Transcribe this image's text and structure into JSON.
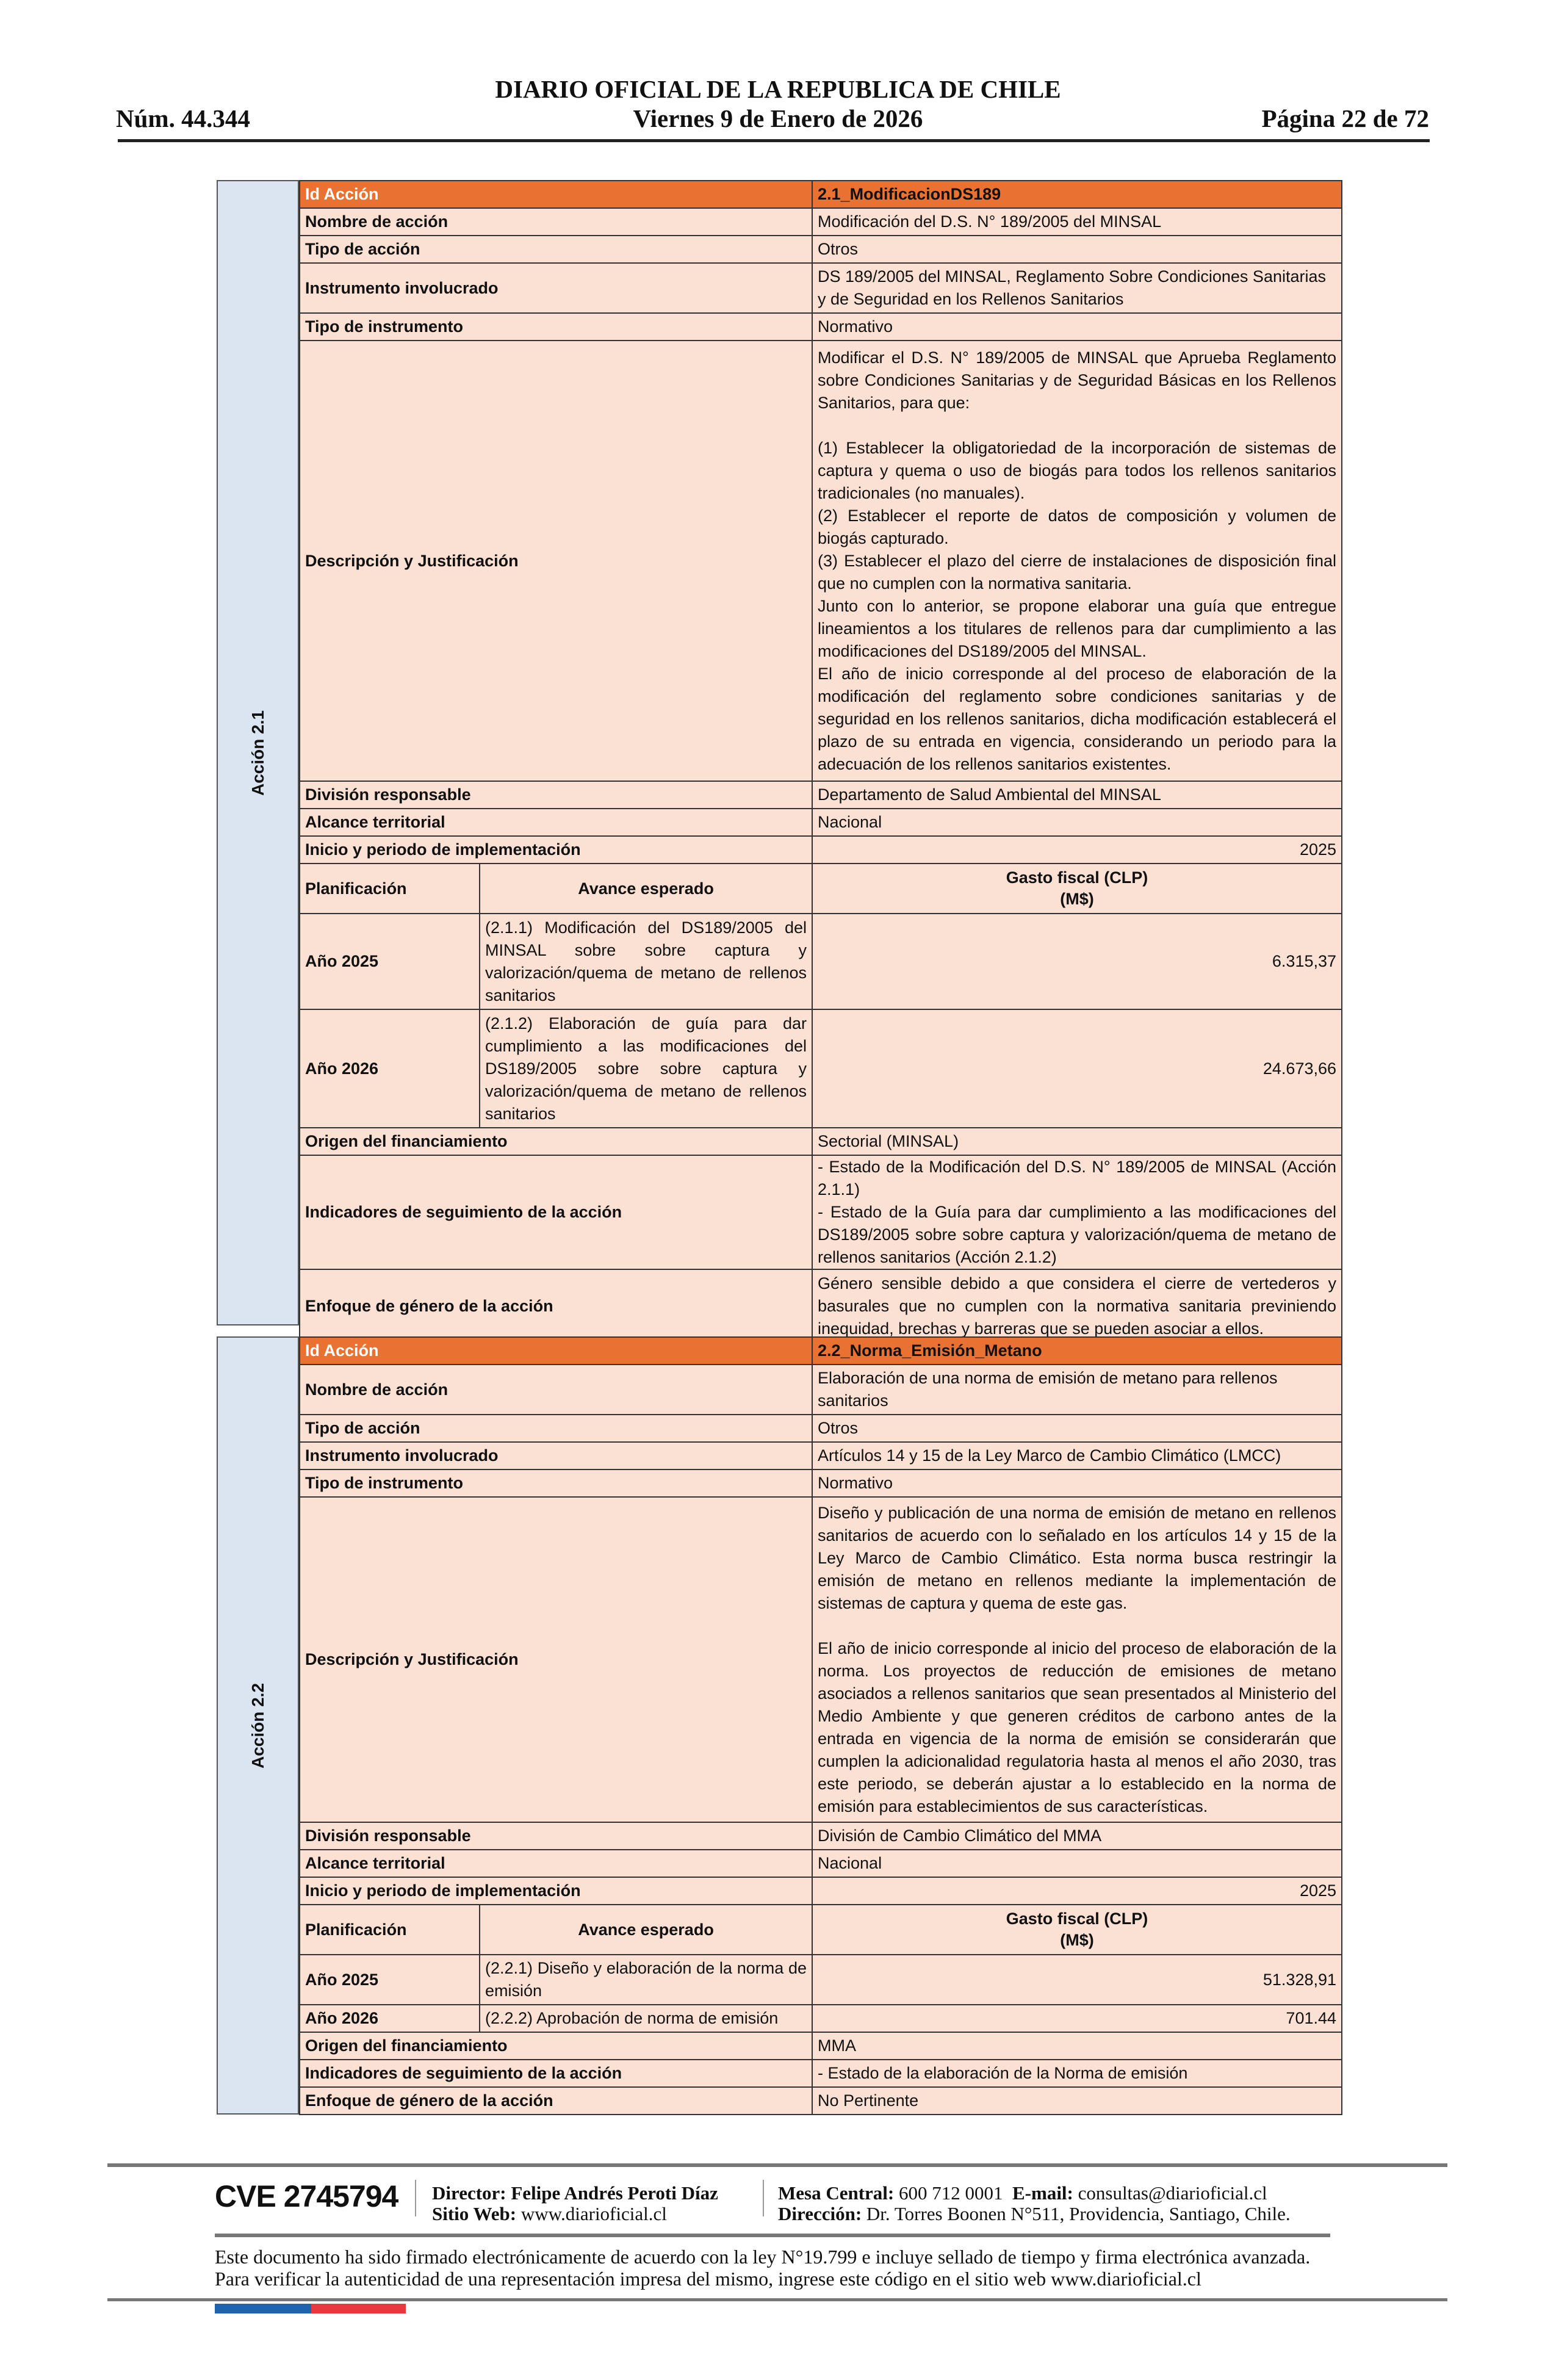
{
  "header": {
    "title": "DIARIO OFICIAL DE LA REPUBLICA DE CHILE",
    "number": "Núm. 44.344",
    "date": "Viernes 9 de Enero de 2026",
    "page": "Página 22 de 72"
  },
  "actions": [
    {
      "side_label": "Acción 2.1",
      "rows": [
        {
          "type": "id",
          "label": "Id Acción",
          "value": "2.1_ModificacionDS189"
        },
        {
          "label": "Nombre de acción",
          "value": "Modificación del D.S. N° 189/2005 del MINSAL"
        },
        {
          "label": "Tipo de acción",
          "value": "Otros"
        },
        {
          "label": "Instrumento involucrado",
          "value": "DS 189/2005 del MINSAL, Reglamento Sobre Condiciones Sanitarias y de Seguridad en los Rellenos Sanitarios"
        },
        {
          "label": "Tipo de instrumento",
          "value": "Normativo"
        },
        {
          "type": "long",
          "label": "Descripción y Justificación",
          "value": "Modificar el D.S. N° 189/2005 de MINSAL que Aprueba Reglamento sobre Condiciones Sanitarias y de Seguridad Básicas en los Rellenos Sanitarios, para que:\n\n(1) Establecer la obligatoriedad de la incorporación de sistemas de captura y quema o uso de biogás para todos los rellenos sanitarios tradicionales (no manuales).\n(2) Establecer el reporte de datos de composición y volumen de biogás capturado.\n(3) Establecer el plazo del cierre de instalaciones de disposición final que no cumplen con la normativa sanitaria.\nJunto con lo anterior, se propone elaborar una guía que entregue lineamientos a los titulares de rellenos para dar cumplimiento a las modificaciones del DS189/2005 del MINSAL.\nEl año de inicio corresponde al del proceso de elaboración de la modificación del reglamento sobre condiciones sanitarias y de seguridad en los rellenos sanitarios, dicha modificación establecerá el plazo de su entrada en vigencia, considerando un periodo para la adecuación de los rellenos sanitarios existentes."
        },
        {
          "label": "División responsable",
          "value": "Departamento de Salud Ambiental del MINSAL"
        },
        {
          "label": "Alcance territorial",
          "value": "Nacional"
        },
        {
          "type": "num",
          "label": "Inicio y periodo de implementación",
          "value": "2025"
        },
        {
          "type": "planhead",
          "label": "Planificación",
          "sub": "Avance esperado",
          "value": "Gasto fiscal (CLP)\n(M$)"
        },
        {
          "type": "plan",
          "label": "Año 2025",
          "sub": "(2.1.1) Modificación del DS189/2005 del MINSAL sobre sobre captura y valorización/quema de metano de rellenos sanitarios",
          "value": "6.315,37"
        },
        {
          "type": "plan",
          "label": "Año 2026",
          "sub": "(2.1.2) Elaboración de guía para dar cumplimiento a las modificaciones del DS189/2005 sobre sobre captura y valorización/quema de metano de rellenos sanitarios",
          "value": "24.673,66"
        },
        {
          "label": "Origen del financiamiento",
          "value": "Sectorial (MINSAL)"
        },
        {
          "type": "long",
          "label": "Indicadores de seguimiento de la acción",
          "value": "- Estado de la Modificación del D.S. N° 189/2005 de MINSAL (Acción 2.1.1)\n- Estado de la Guía para dar cumplimiento a las modificaciones del DS189/2005 sobre sobre captura y valorización/quema de metano de rellenos sanitarios (Acción 2.1.2)"
        },
        {
          "type": "long",
          "label": "Enfoque de género de la acción",
          "value": "Género sensible debido a que considera el cierre de vertederos y basurales que no cumplen con la normativa sanitaria previniendo inequidad, brechas y barreras que se pueden asociar a ellos."
        }
      ]
    },
    {
      "side_label": "Acción 2.2",
      "rows": [
        {
          "type": "id",
          "label": "Id Acción",
          "value": "2.2_Norma_Emisión_Metano"
        },
        {
          "label": "Nombre de acción",
          "value": "Elaboración de una norma de emisión de metano para rellenos sanitarios"
        },
        {
          "label": "Tipo de acción",
          "value": "Otros"
        },
        {
          "label": "Instrumento involucrado",
          "value": "Artículos 14 y 15 de la Ley Marco de Cambio Climático (LMCC)"
        },
        {
          "label": "Tipo de instrumento",
          "value": "Normativo"
        },
        {
          "type": "long",
          "label": "Descripción y Justificación",
          "value": "Diseño y publicación de una norma de emisión de metano en rellenos sanitarios de acuerdo con lo señalado en los artículos 14 y 15 de la Ley Marco de Cambio Climático. Esta norma busca restringir la emisión de metano en rellenos mediante la implementación de sistemas de captura y quema de este gas.\n\nEl año de inicio corresponde al inicio del proceso de elaboración de la norma. Los proyectos de reducción de emisiones de metano asociados a rellenos sanitarios que sean presentados al Ministerio del Medio Ambiente y que generen créditos de carbono antes de la entrada en vigencia de la norma de emisión se considerarán que cumplen la adicionalidad regulatoria hasta al menos el año 2030, tras este periodo, se deberán ajustar a lo establecido en la norma de emisión para establecimientos de sus características."
        },
        {
          "label": "División responsable",
          "value": "División de Cambio Climático del MMA"
        },
        {
          "label": "Alcance territorial",
          "value": "Nacional"
        },
        {
          "type": "num",
          "label": "Inicio y periodo de implementación",
          "value": "2025"
        },
        {
          "type": "planhead",
          "label": "Planificación",
          "sub": "Avance esperado",
          "value": "Gasto fiscal (CLP)\n(M$)"
        },
        {
          "type": "plan",
          "label": "Año 2025",
          "sub": "(2.2.1) Diseño y elaboración de la norma de emisión",
          "value": "51.328,91"
        },
        {
          "type": "plan",
          "label": "Año 2026",
          "sub": "(2.2.2) Aprobación de norma de emisión",
          "value": "701.44"
        },
        {
          "label": "Origen del financiamiento",
          "value": "MMA"
        },
        {
          "label": "Indicadores de seguimiento de la acción",
          "value": "- Estado de la elaboración de la Norma de emisión"
        },
        {
          "label": "Enfoque de género de la acción",
          "value": "No Pertinente"
        }
      ]
    }
  ],
  "footer": {
    "cve": "CVE 2745794",
    "director_label": "Director:",
    "director": "Felipe Andrés Peroti Díaz",
    "web_label": "Sitio Web:",
    "web": "www.diarioficial.cl",
    "phone_label": "Mesa Central:",
    "phone": "600 712 0001",
    "email_label": "E-mail:",
    "email": "consultas@diarioficial.cl",
    "address_label": "Dirección:",
    "address": "Dr. Torres Boonen N°511, Providencia, Santiago, Chile.",
    "legal": "Este documento ha sido firmado electrónicamente de acuerdo con la ley N°19.799 e incluye sellado de tiempo y firma electrónica avanzada. Para verificar la autenticidad de una representación impresa del mismo, ingrese este código en el sitio web www.diarioficial.cl",
    "flag_colors": [
      "#1f62b0",
      "#e8393f"
    ]
  }
}
